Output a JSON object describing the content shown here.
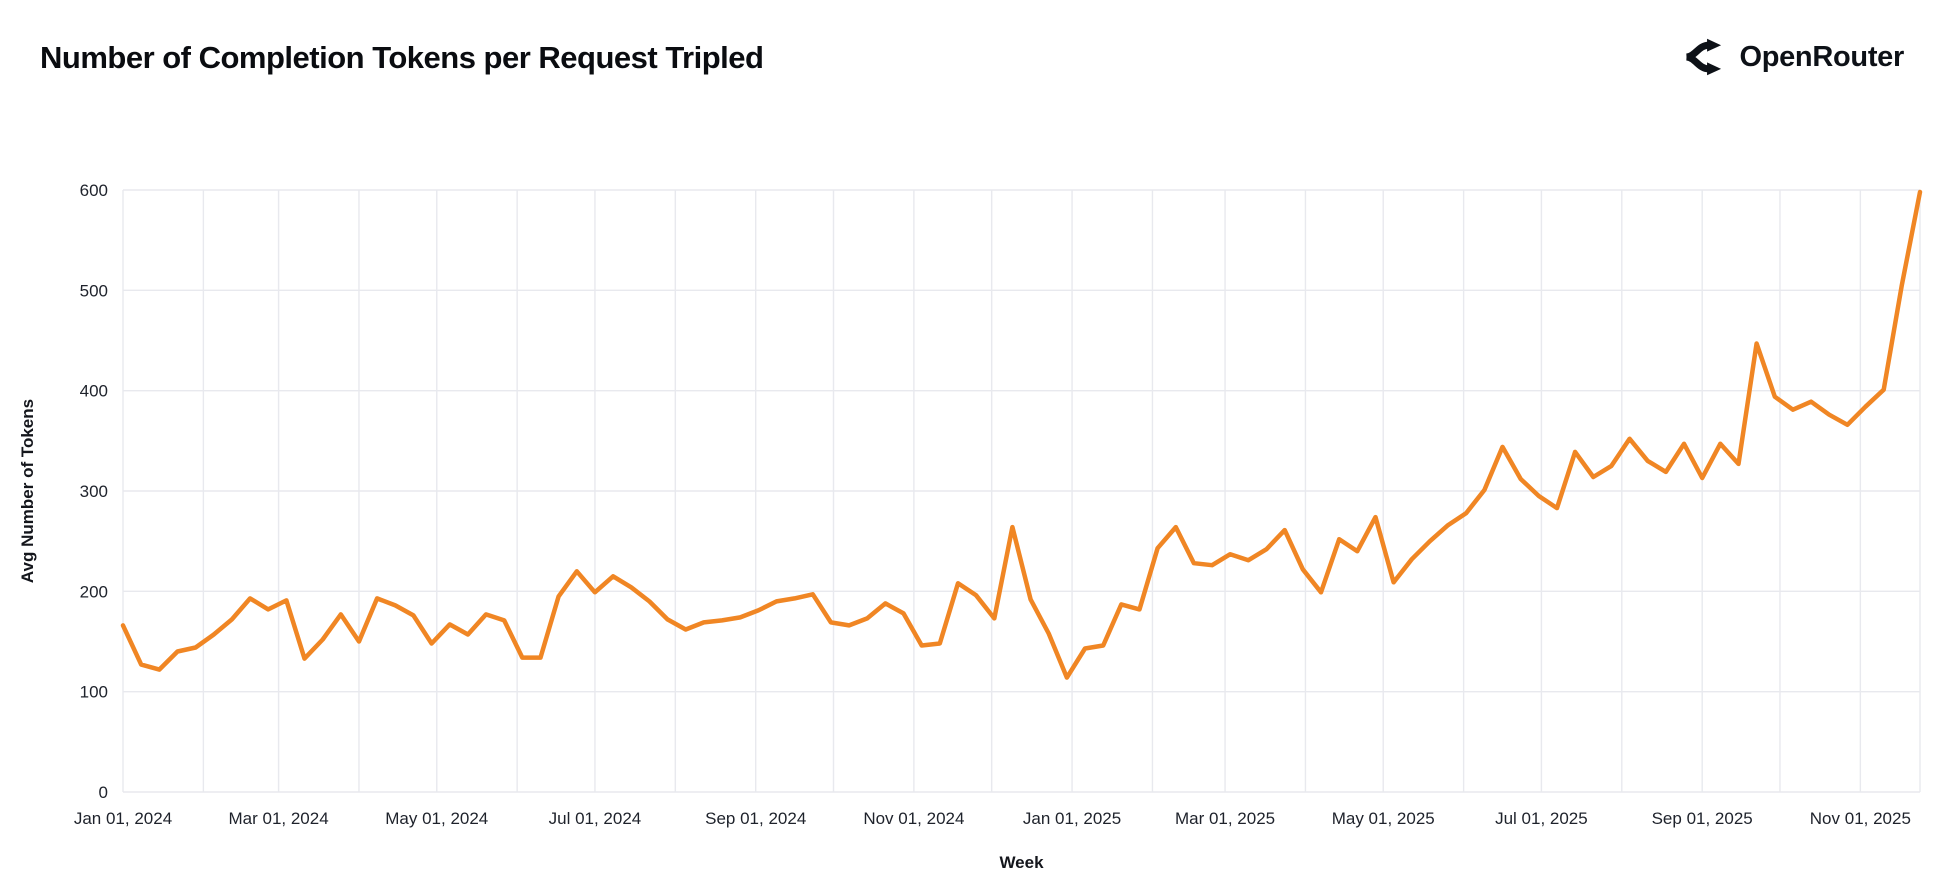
{
  "header": {
    "title": "Number of Completion Tokens per Request Tripled",
    "brand": "OpenRouter"
  },
  "colors": {
    "line": "#F08624",
    "grid": "#E8E9EE",
    "tick_text": "#1E222B",
    "title_text": "#0A0C10",
    "background": "#FFFFFF"
  },
  "chart_data": {
    "type": "line",
    "title": "Number of Completion Tokens per Request Tripled",
    "xlabel": "Week",
    "ylabel": "Avg Number of Tokens",
    "ylim": [
      0,
      600
    ],
    "y_ticks": [
      0,
      100,
      200,
      300,
      400,
      500,
      600
    ],
    "grid": true,
    "legend": "none",
    "x_domain": [
      "2024-01-01",
      "2025-11-24"
    ],
    "x_ticks": [
      {
        "date": "2024-01-01",
        "label": "Jan 01, 2024"
      },
      {
        "date": "2024-03-01",
        "label": "Mar 01, 2024"
      },
      {
        "date": "2024-05-01",
        "label": "May 01, 2024"
      },
      {
        "date": "2024-07-01",
        "label": "Jul 01, 2024"
      },
      {
        "date": "2024-09-01",
        "label": "Sep 01, 2024"
      },
      {
        "date": "2024-11-01",
        "label": "Nov 01, 2024"
      },
      {
        "date": "2025-01-01",
        "label": "Jan 01, 2025"
      },
      {
        "date": "2025-03-01",
        "label": "Mar 01, 2025"
      },
      {
        "date": "2025-05-01",
        "label": "May 01, 2025"
      },
      {
        "date": "2025-07-01",
        "label": "Jul 01, 2025"
      },
      {
        "date": "2025-09-01",
        "label": "Sep 01, 2025"
      },
      {
        "date": "2025-11-01",
        "label": "Nov 01, 2025"
      }
    ],
    "series": [
      {
        "name": "Avg Number of Tokens",
        "x": [
          "2024-01-01",
          "2024-01-08",
          "2024-01-15",
          "2024-01-22",
          "2024-01-29",
          "2024-02-05",
          "2024-02-12",
          "2024-02-19",
          "2024-02-26",
          "2024-03-04",
          "2024-03-11",
          "2024-03-18",
          "2024-03-25",
          "2024-04-01",
          "2024-04-08",
          "2024-04-15",
          "2024-04-22",
          "2024-04-29",
          "2024-05-06",
          "2024-05-13",
          "2024-05-20",
          "2024-05-27",
          "2024-06-03",
          "2024-06-10",
          "2024-06-17",
          "2024-06-24",
          "2024-07-01",
          "2024-07-08",
          "2024-07-15",
          "2024-07-22",
          "2024-07-29",
          "2024-08-05",
          "2024-08-12",
          "2024-08-19",
          "2024-08-26",
          "2024-09-02",
          "2024-09-09",
          "2024-09-16",
          "2024-09-23",
          "2024-09-30",
          "2024-10-07",
          "2024-10-14",
          "2024-10-21",
          "2024-10-28",
          "2024-11-04",
          "2024-11-11",
          "2024-11-18",
          "2024-11-25",
          "2024-12-02",
          "2024-12-09",
          "2024-12-16",
          "2024-12-23",
          "2024-12-30",
          "2025-01-06",
          "2025-01-13",
          "2025-01-20",
          "2025-01-27",
          "2025-02-03",
          "2025-02-10",
          "2025-02-17",
          "2025-02-24",
          "2025-03-03",
          "2025-03-10",
          "2025-03-17",
          "2025-03-24",
          "2025-03-31",
          "2025-04-07",
          "2025-04-14",
          "2025-04-21",
          "2025-04-28",
          "2025-05-05",
          "2025-05-12",
          "2025-05-19",
          "2025-05-26",
          "2025-06-02",
          "2025-06-09",
          "2025-06-16",
          "2025-06-23",
          "2025-06-30",
          "2025-07-07",
          "2025-07-14",
          "2025-07-21",
          "2025-07-28",
          "2025-08-04",
          "2025-08-11",
          "2025-08-18",
          "2025-08-25",
          "2025-09-01",
          "2025-09-08",
          "2025-09-15",
          "2025-09-22",
          "2025-09-29",
          "2025-10-06",
          "2025-10-13",
          "2025-10-20",
          "2025-10-27",
          "2025-11-03",
          "2025-11-10",
          "2025-11-17",
          "2025-11-24"
        ],
        "values": [
          166,
          127,
          122,
          140,
          144,
          157,
          172,
          193,
          182,
          191,
          133,
          152,
          177,
          150,
          193,
          186,
          176,
          148,
          167,
          157,
          177,
          171,
          134,
          134,
          195,
          220,
          199,
          215,
          204,
          190,
          172,
          162,
          169,
          171,
          174,
          181,
          190,
          193,
          197,
          169,
          166,
          173,
          188,
          178,
          146,
          148,
          208,
          196,
          173,
          264,
          192,
          158,
          114,
          143,
          146,
          187,
          182,
          243,
          264,
          228,
          226,
          237,
          231,
          242,
          261,
          222,
          199,
          252,
          240,
          274,
          209,
          232,
          250,
          266,
          278,
          301,
          344,
          312,
          295,
          283,
          339,
          314,
          325,
          352,
          330,
          319,
          347,
          313,
          347,
          327,
          447,
          394,
          381,
          389,
          376,
          366,
          384,
          401,
          505,
          598
        ]
      }
    ]
  }
}
